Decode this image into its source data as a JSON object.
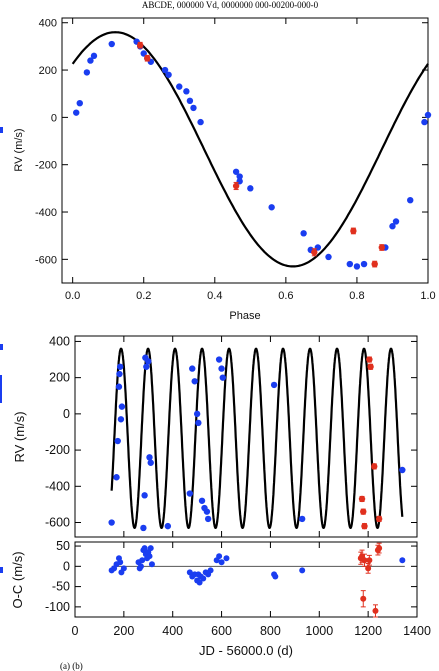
{
  "header_text": "ABCDE, 000000 Vd, 0000000 000-00200-000-0",
  "bottom_caption": "(a)                                                                                    (b)",
  "chart_data": [
    {
      "type": "scatter",
      "panel": "phase-folded",
      "title": "",
      "xlabel": "Phase",
      "ylabel": "RV (m/s)",
      "xlim": [
        -0.03,
        1.0
      ],
      "ylim": [
        -700,
        420
      ],
      "xticks": [
        "0.0",
        "0.2",
        "0.4",
        "0.6",
        "0.8",
        "1.0"
      ],
      "yticks": [
        "-600",
        "-400",
        "-200",
        "0",
        "200",
        "400"
      ],
      "grid": false,
      "series": [
        {
          "color": "#1a3df0",
          "points": [
            [
              0.01,
              20
            ],
            [
              0.02,
              60
            ],
            [
              0.04,
              190
            ],
            [
              0.05,
              240
            ],
            [
              0.06,
              260
            ],
            [
              0.11,
              310
            ],
            [
              0.18,
              320
            ],
            [
              0.19,
              300
            ],
            [
              0.2,
              270
            ],
            [
              0.21,
              250
            ],
            [
              0.22,
              235
            ],
            [
              0.26,
              200
            ],
            [
              0.27,
              180
            ],
            [
              0.3,
              130
            ],
            [
              0.32,
              110
            ],
            [
              0.33,
              70
            ],
            [
              0.34,
              40
            ],
            [
              0.36,
              -20
            ],
            [
              0.46,
              -230
            ],
            [
              0.47,
              -250
            ],
            [
              0.47,
              -270
            ],
            [
              0.5,
              -300
            ],
            [
              0.56,
              -380
            ],
            [
              0.65,
              -490
            ],
            [
              0.67,
              -560
            ],
            [
              0.69,
              -550
            ],
            [
              0.72,
              -590
            ],
            [
              0.78,
              -620
            ],
            [
              0.8,
              -630
            ],
            [
              0.82,
              -620
            ],
            [
              0.88,
              -550
            ],
            [
              0.9,
              -460
            ],
            [
              0.91,
              -440
            ],
            [
              0.95,
              -350
            ],
            [
              0.99,
              -20
            ],
            [
              1.0,
              10
            ]
          ]
        },
        {
          "color": "#e0301e",
          "points": [
            [
              0.19,
              305,
              12
            ],
            [
              0.21,
              250,
              12
            ],
            [
              0.46,
              -290,
              15
            ],
            [
              0.68,
              -570,
              15
            ],
            [
              0.79,
              -480,
              12
            ],
            [
              0.85,
              -620,
              12
            ],
            [
              0.87,
              -550,
              12
            ]
          ]
        }
      ],
      "model": "sinusoid fit, period 1.0 in phase, peak +360 m/s near phase 0.12, trough -630 m/s near phase 0.79"
    },
    {
      "type": "scatter",
      "panel": "time-series",
      "title": "",
      "xlabel": "",
      "ylabel": "RV (m/s)",
      "xlim": [
        0,
        1400
      ],
      "ylim": [
        -680,
        430
      ],
      "yticks": [
        "-600",
        "-400",
        "-200",
        "0",
        "200",
        "400"
      ],
      "grid": false,
      "series": [
        {
          "color": "#1a3df0",
          "points": [
            [
              150,
              -600
            ],
            [
              170,
              -350
            ],
            [
              175,
              -150
            ],
            [
              180,
              150
            ],
            [
              182,
              220
            ],
            [
              185,
              260
            ],
            [
              188,
              -30
            ],
            [
              192,
              40
            ],
            [
              280,
              -630
            ],
            [
              285,
              -450
            ],
            [
              288,
              310
            ],
            [
              292,
              260
            ],
            [
              300,
              290
            ],
            [
              305,
              -240
            ],
            [
              310,
              -270
            ],
            [
              380,
              -620
            ],
            [
              470,
              -440
            ],
            [
              480,
              250
            ],
            [
              490,
              180
            ],
            [
              500,
              0
            ],
            [
              505,
              -50
            ],
            [
              520,
              -480
            ],
            [
              530,
              -520
            ],
            [
              540,
              -540
            ],
            [
              545,
              -580
            ],
            [
              590,
              300
            ],
            [
              600,
              250
            ],
            [
              605,
              200
            ],
            [
              815,
              160
            ],
            [
              930,
              -580
            ],
            [
              1340,
              -310
            ]
          ]
        },
        {
          "color": "#e0301e",
          "points": [
            [
              1175,
              -470,
              14
            ],
            [
              1180,
              -540,
              14
            ],
            [
              1185,
              -620,
              14
            ],
            [
              1205,
              300,
              14
            ],
            [
              1210,
              260,
              14
            ],
            [
              1225,
              -290,
              14
            ],
            [
              1245,
              -580,
              14
            ]
          ]
        }
      ],
      "model": "sinusoid fit, amplitude about 500 m/s about -130 m/s, period about 110 d, 0 to 1400 d"
    },
    {
      "type": "scatter",
      "panel": "residuals",
      "title": "",
      "xlabel": "JD - 56000.0 (d)",
      "ylabel": "O-C (m/s)",
      "xlim": [
        0,
        1400
      ],
      "ylim": [
        -125,
        60
      ],
      "xticks": [
        "0",
        "200",
        "400",
        "600",
        "800",
        "1000",
        "1200",
        "1400"
      ],
      "yticks": [
        "-100",
        "-50",
        "0",
        "50"
      ],
      "grid": false,
      "series": [
        {
          "color": "#1a3df0",
          "points": [
            [
              150,
              -10
            ],
            [
              160,
              -5
            ],
            [
              170,
              5
            ],
            [
              180,
              20
            ],
            [
              185,
              10
            ],
            [
              190,
              -15
            ],
            [
              200,
              -5
            ],
            [
              260,
              10
            ],
            [
              265,
              -5
            ],
            [
              270,
              0
            ],
            [
              275,
              15
            ],
            [
              280,
              40
            ],
            [
              285,
              45
            ],
            [
              290,
              30
            ],
            [
              295,
              20
            ],
            [
              300,
              35
            ],
            [
              305,
              25
            ],
            [
              310,
              45
            ],
            [
              315,
              5
            ],
            [
              470,
              -15
            ],
            [
              480,
              -25
            ],
            [
              490,
              -20
            ],
            [
              500,
              -35
            ],
            [
              505,
              -20
            ],
            [
              510,
              -40
            ],
            [
              515,
              -25
            ],
            [
              525,
              -30
            ],
            [
              535,
              -15
            ],
            [
              545,
              -20
            ],
            [
              555,
              -10
            ],
            [
              580,
              15
            ],
            [
              590,
              25
            ],
            [
              600,
              10
            ],
            [
              620,
              20
            ],
            [
              815,
              -20
            ],
            [
              820,
              -25
            ],
            [
              930,
              -10
            ],
            [
              1340,
              15
            ]
          ]
        },
        {
          "color": "#e0301e",
          "points": [
            [
              1170,
              20,
              15
            ],
            [
              1175,
              25,
              15
            ],
            [
              1180,
              -80,
              20
            ],
            [
              1185,
              15,
              15
            ],
            [
              1200,
              -5,
              12
            ],
            [
              1205,
              15,
              12
            ],
            [
              1230,
              -110,
              15
            ],
            [
              1240,
              40,
              12
            ],
            [
              1245,
              45,
              12
            ]
          ]
        }
      ]
    }
  ]
}
